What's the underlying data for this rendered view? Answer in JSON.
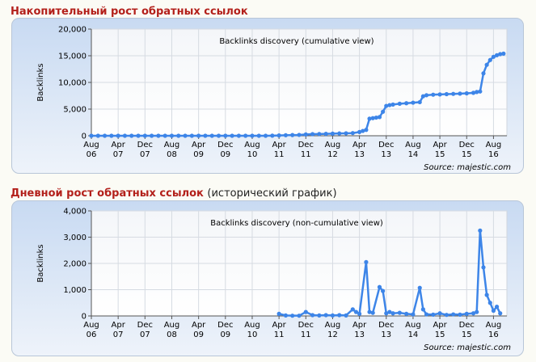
{
  "headings": [
    {
      "title": "Накопительный рост обратных ссылок"
    },
    {
      "title": "Дневной рост обратных ссылок",
      "note": "(исторический график)"
    }
  ],
  "chart_data": [
    {
      "type": "line",
      "title": "Backlinks discovery (cumulative view)",
      "ylabel": "Backlinks",
      "source": "Source: majestic.com",
      "color": "#3d85e8",
      "grid": true,
      "xlim": [
        0,
        124
      ],
      "xticks": [
        {
          "value": 0,
          "label": "Aug 06"
        },
        {
          "value": 8,
          "label": "Apr 07"
        },
        {
          "value": 16,
          "label": "Dec 07"
        },
        {
          "value": 24,
          "label": "Aug 08"
        },
        {
          "value": 32,
          "label": "Apr 09"
        },
        {
          "value": 40,
          "label": "Dec 09"
        },
        {
          "value": 48,
          "label": "Aug 10"
        },
        {
          "value": 56,
          "label": "Apr 11"
        },
        {
          "value": 64,
          "label": "Dec 11"
        },
        {
          "value": 72,
          "label": "Aug 12"
        },
        {
          "value": 80,
          "label": "Apr 13"
        },
        {
          "value": 88,
          "label": "Dec 13"
        },
        {
          "value": 96,
          "label": "Aug 14"
        },
        {
          "value": 104,
          "label": "Apr 15"
        },
        {
          "value": 112,
          "label": "Dec 15"
        },
        {
          "value": 120,
          "label": "Aug 16"
        }
      ],
      "ylim": [
        0,
        20000
      ],
      "yticks": [
        0,
        {
          "value": 5000,
          "label": "5,000"
        },
        {
          "value": 10000,
          "label": "10,000"
        },
        {
          "value": 15000,
          "label": "15,000"
        },
        {
          "value": 20000,
          "label": "20,000"
        }
      ],
      "x": [
        0,
        2,
        4,
        6,
        8,
        10,
        12,
        14,
        16,
        18,
        20,
        22,
        24,
        26,
        28,
        30,
        32,
        34,
        36,
        38,
        40,
        42,
        44,
        46,
        48,
        50,
        52,
        54,
        56,
        58,
        60,
        62,
        64,
        66,
        68,
        70,
        72,
        74,
        76,
        78,
        80,
        81,
        82,
        83,
        84,
        85,
        86,
        87,
        88,
        89,
        90,
        92,
        94,
        96,
        98,
        99,
        100,
        102,
        104,
        106,
        108,
        110,
        112,
        114,
        115,
        116,
        117,
        118,
        119,
        120,
        121,
        122,
        123
      ],
      "values": [
        0,
        0,
        0,
        0,
        0,
        0,
        0,
        0,
        0,
        0,
        0,
        0,
        0,
        0,
        0,
        0,
        0,
        0,
        0,
        0,
        0,
        0,
        0,
        0,
        0,
        0,
        0,
        20,
        60,
        100,
        130,
        160,
        250,
        300,
        330,
        360,
        400,
        430,
        460,
        500,
        700,
        900,
        1100,
        3200,
        3300,
        3400,
        3500,
        4500,
        5600,
        5750,
        5850,
        6000,
        6100,
        6200,
        6300,
        7400,
        7600,
        7700,
        7750,
        7800,
        7850,
        7900,
        7950,
        8050,
        8200,
        8300,
        11700,
        13300,
        14200,
        14800,
        15100,
        15300,
        15400
      ]
    },
    {
      "type": "line",
      "title": "Backlinks discovery (non-cumulative view)",
      "ylabel": "Backlinks",
      "source": "Source: majestic.com",
      "color": "#3d85e8",
      "grid": true,
      "xlim": [
        0,
        124
      ],
      "xticks": [
        {
          "value": 0,
          "label": "Aug 06"
        },
        {
          "value": 8,
          "label": "Apr 07"
        },
        {
          "value": 16,
          "label": "Dec 07"
        },
        {
          "value": 24,
          "label": "Aug 08"
        },
        {
          "value": 32,
          "label": "Apr 09"
        },
        {
          "value": 40,
          "label": "Dec 09"
        },
        {
          "value": 48,
          "label": "Aug 10"
        },
        {
          "value": 56,
          "label": "Apr 11"
        },
        {
          "value": 64,
          "label": "Dec 11"
        },
        {
          "value": 72,
          "label": "Aug 12"
        },
        {
          "value": 80,
          "label": "Apr 13"
        },
        {
          "value": 88,
          "label": "Dec 13"
        },
        {
          "value": 96,
          "label": "Aug 14"
        },
        {
          "value": 104,
          "label": "Apr 15"
        },
        {
          "value": 112,
          "label": "Dec 15"
        },
        {
          "value": 120,
          "label": "Aug 16"
        }
      ],
      "ylim": [
        0,
        4000
      ],
      "yticks": [
        0,
        {
          "value": 1000,
          "label": "1,000"
        },
        {
          "value": 2000,
          "label": "2,000"
        },
        {
          "value": 3000,
          "label": "3,000"
        },
        {
          "value": 4000,
          "label": "4,000"
        }
      ],
      "x": [
        56,
        58,
        60,
        62,
        64,
        66,
        68,
        70,
        72,
        74,
        76,
        78,
        79,
        80,
        82,
        83,
        84,
        86,
        87,
        88,
        89,
        90,
        92,
        94,
        96,
        98,
        99,
        100,
        102,
        104,
        106,
        108,
        110,
        112,
        114,
        115,
        116,
        117,
        118,
        119,
        120,
        121,
        122
      ],
      "values": [
        80,
        20,
        10,
        10,
        150,
        30,
        20,
        30,
        20,
        30,
        20,
        250,
        150,
        80,
        2050,
        150,
        120,
        1100,
        950,
        100,
        150,
        100,
        120,
        80,
        60,
        1070,
        250,
        60,
        50,
        100,
        40,
        60,
        50,
        80,
        100,
        150,
        3250,
        1850,
        800,
        500,
        200,
        350,
        100
      ]
    }
  ]
}
